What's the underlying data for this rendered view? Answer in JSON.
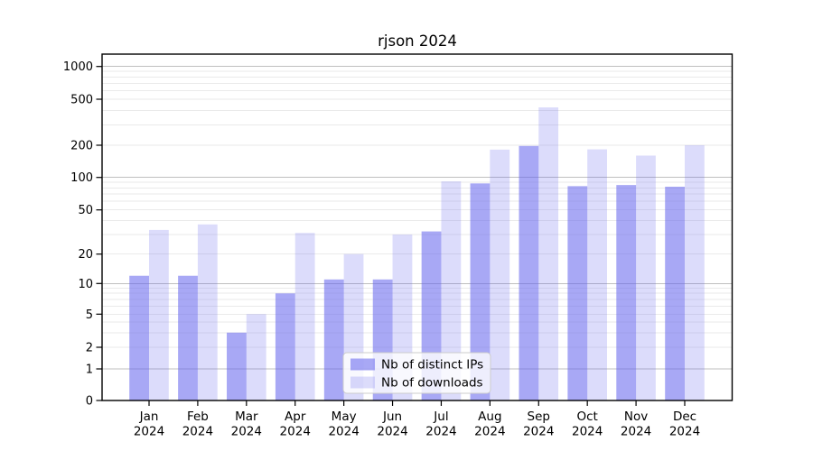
{
  "chart_data": {
    "type": "bar",
    "title": "rjson 2024",
    "categories": [
      "Jan 2024",
      "Feb 2024",
      "Mar 2024",
      "Apr 2024",
      "May 2024",
      "Jun 2024",
      "Jul 2024",
      "Aug 2024",
      "Sep 2024",
      "Oct 2024",
      "Nov 2024",
      "Dec 2024"
    ],
    "series": [
      {
        "name": "Nb of distinct IPs",
        "color": "rgba(102,102,238,0.57)",
        "apparent_color": "#a8a8f5",
        "values": [
          12,
          12,
          3,
          8,
          11,
          11,
          32,
          88,
          197,
          83,
          85,
          82
        ]
      },
      {
        "name": "Nb of downloads",
        "color": "rgba(102,102,238,0.23)",
        "apparent_color": "#dcdcf8",
        "values": [
          33,
          37,
          5,
          31,
          20,
          30,
          92,
          182,
          425,
          183,
          160,
          200
        ]
      }
    ],
    "y_ticks": [
      0,
      1,
      2,
      5,
      10,
      20,
      50,
      100,
      200,
      500,
      1000
    ],
    "y_scale": "log (linear segment from 0 to 1)",
    "ylim": [
      0,
      1300
    ],
    "xlabel": "",
    "ylabel": "",
    "grid": true,
    "grid_major_color": "#bfbfbf",
    "grid_minor_color": "#eaeaea",
    "legend": {
      "position": "lower center",
      "labels": [
        "Nb of distinct IPs",
        "Nb of downloads"
      ]
    }
  }
}
